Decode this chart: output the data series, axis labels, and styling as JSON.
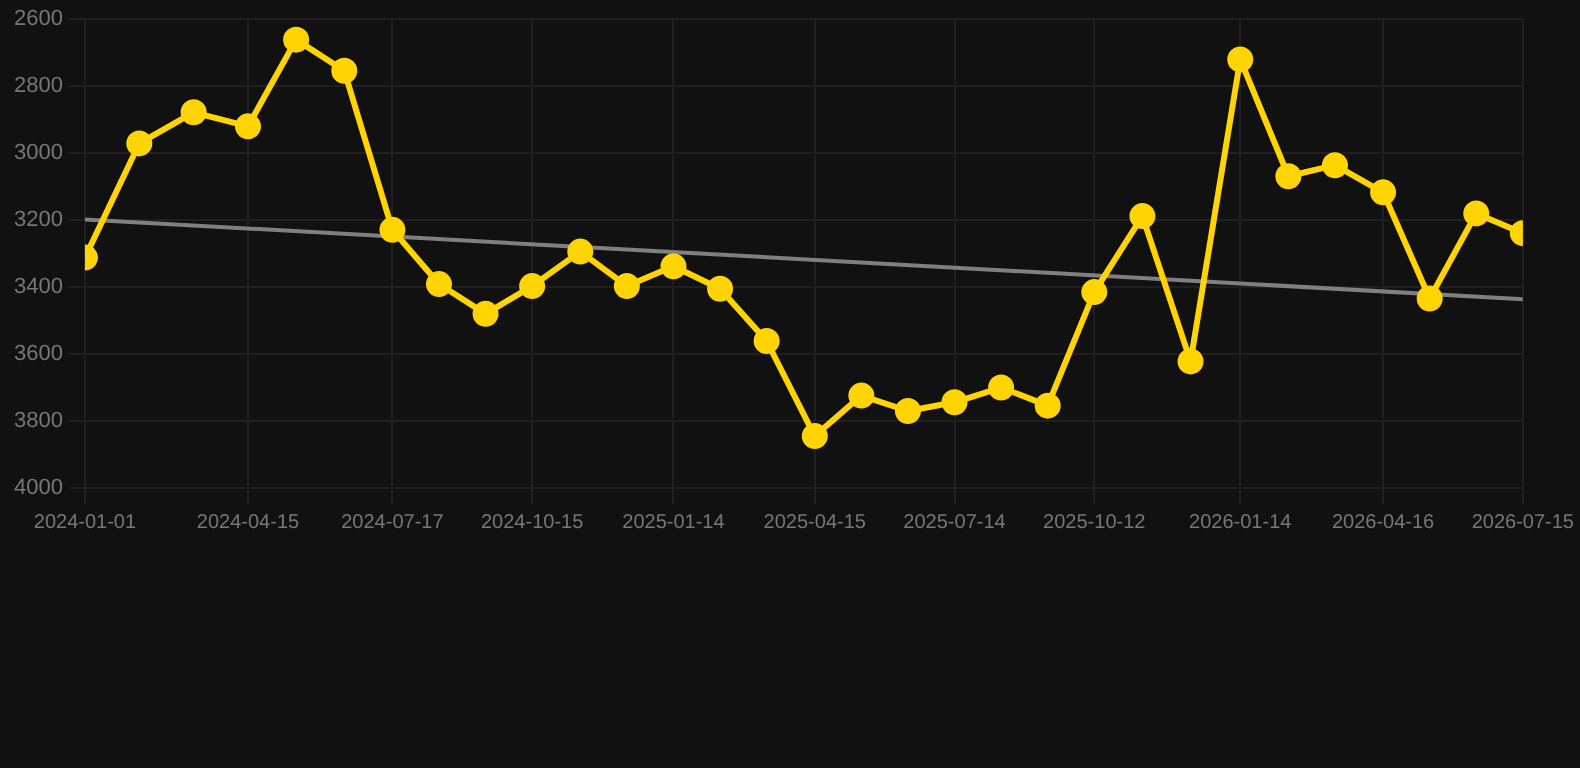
{
  "chart_data": {
    "type": "line",
    "x": [
      "2024-01-01",
      "2024-02-05",
      "2024-03-11",
      "2024-04-15",
      "2024-05-16",
      "2024-06-16",
      "2024-07-17",
      "2024-08-16",
      "2024-09-15",
      "2024-10-15",
      "2024-11-15",
      "2024-12-15",
      "2025-01-14",
      "2025-02-13",
      "2025-03-15",
      "2025-04-15",
      "2025-05-15",
      "2025-06-14",
      "2025-07-14",
      "2025-08-13",
      "2025-09-12",
      "2025-10-12",
      "2025-11-12",
      "2025-12-13",
      "2026-01-14",
      "2026-02-14",
      "2026-03-16",
      "2026-04-16",
      "2026-05-16",
      "2026-06-15",
      "2026-07-15"
    ],
    "series": [
      {
        "color": "#ffd400",
        "marker": "circle",
        "values": [
          3312,
          2971,
          2878,
          2920,
          2661,
          2754,
          3229,
          3391,
          3480,
          3397,
          3294,
          3397,
          3338,
          3405,
          3561,
          3845,
          3724,
          3770,
          3744,
          3700,
          3754,
          3415,
          3188,
          3622,
          2720,
          3069,
          3036,
          3117,
          3434,
          3180,
          3239
        ]
      },
      {
        "type": "line",
        "color": "#808080",
        "marker": "none",
        "x": [
          "2024-01-01",
          "2026-07-15"
        ],
        "values": [
          3198,
          3436
        ]
      }
    ],
    "ylim": [
      4000,
      2600
    ],
    "yticks": [
      2600,
      2800,
      3000,
      3200,
      3400,
      3600,
      3800,
      4000
    ],
    "xlim": [
      "2024-01-01",
      "2026-07-15"
    ],
    "xticks": [
      "2024-01-01",
      "2024-04-15",
      "2024-07-17",
      "2024-10-15",
      "2025-01-14",
      "2025-04-15",
      "2025-07-14",
      "2025-10-12",
      "2026-01-14",
      "2026-04-16",
      "2026-07-15"
    ],
    "grid": true,
    "legend": false,
    "line_style": "solid"
  }
}
